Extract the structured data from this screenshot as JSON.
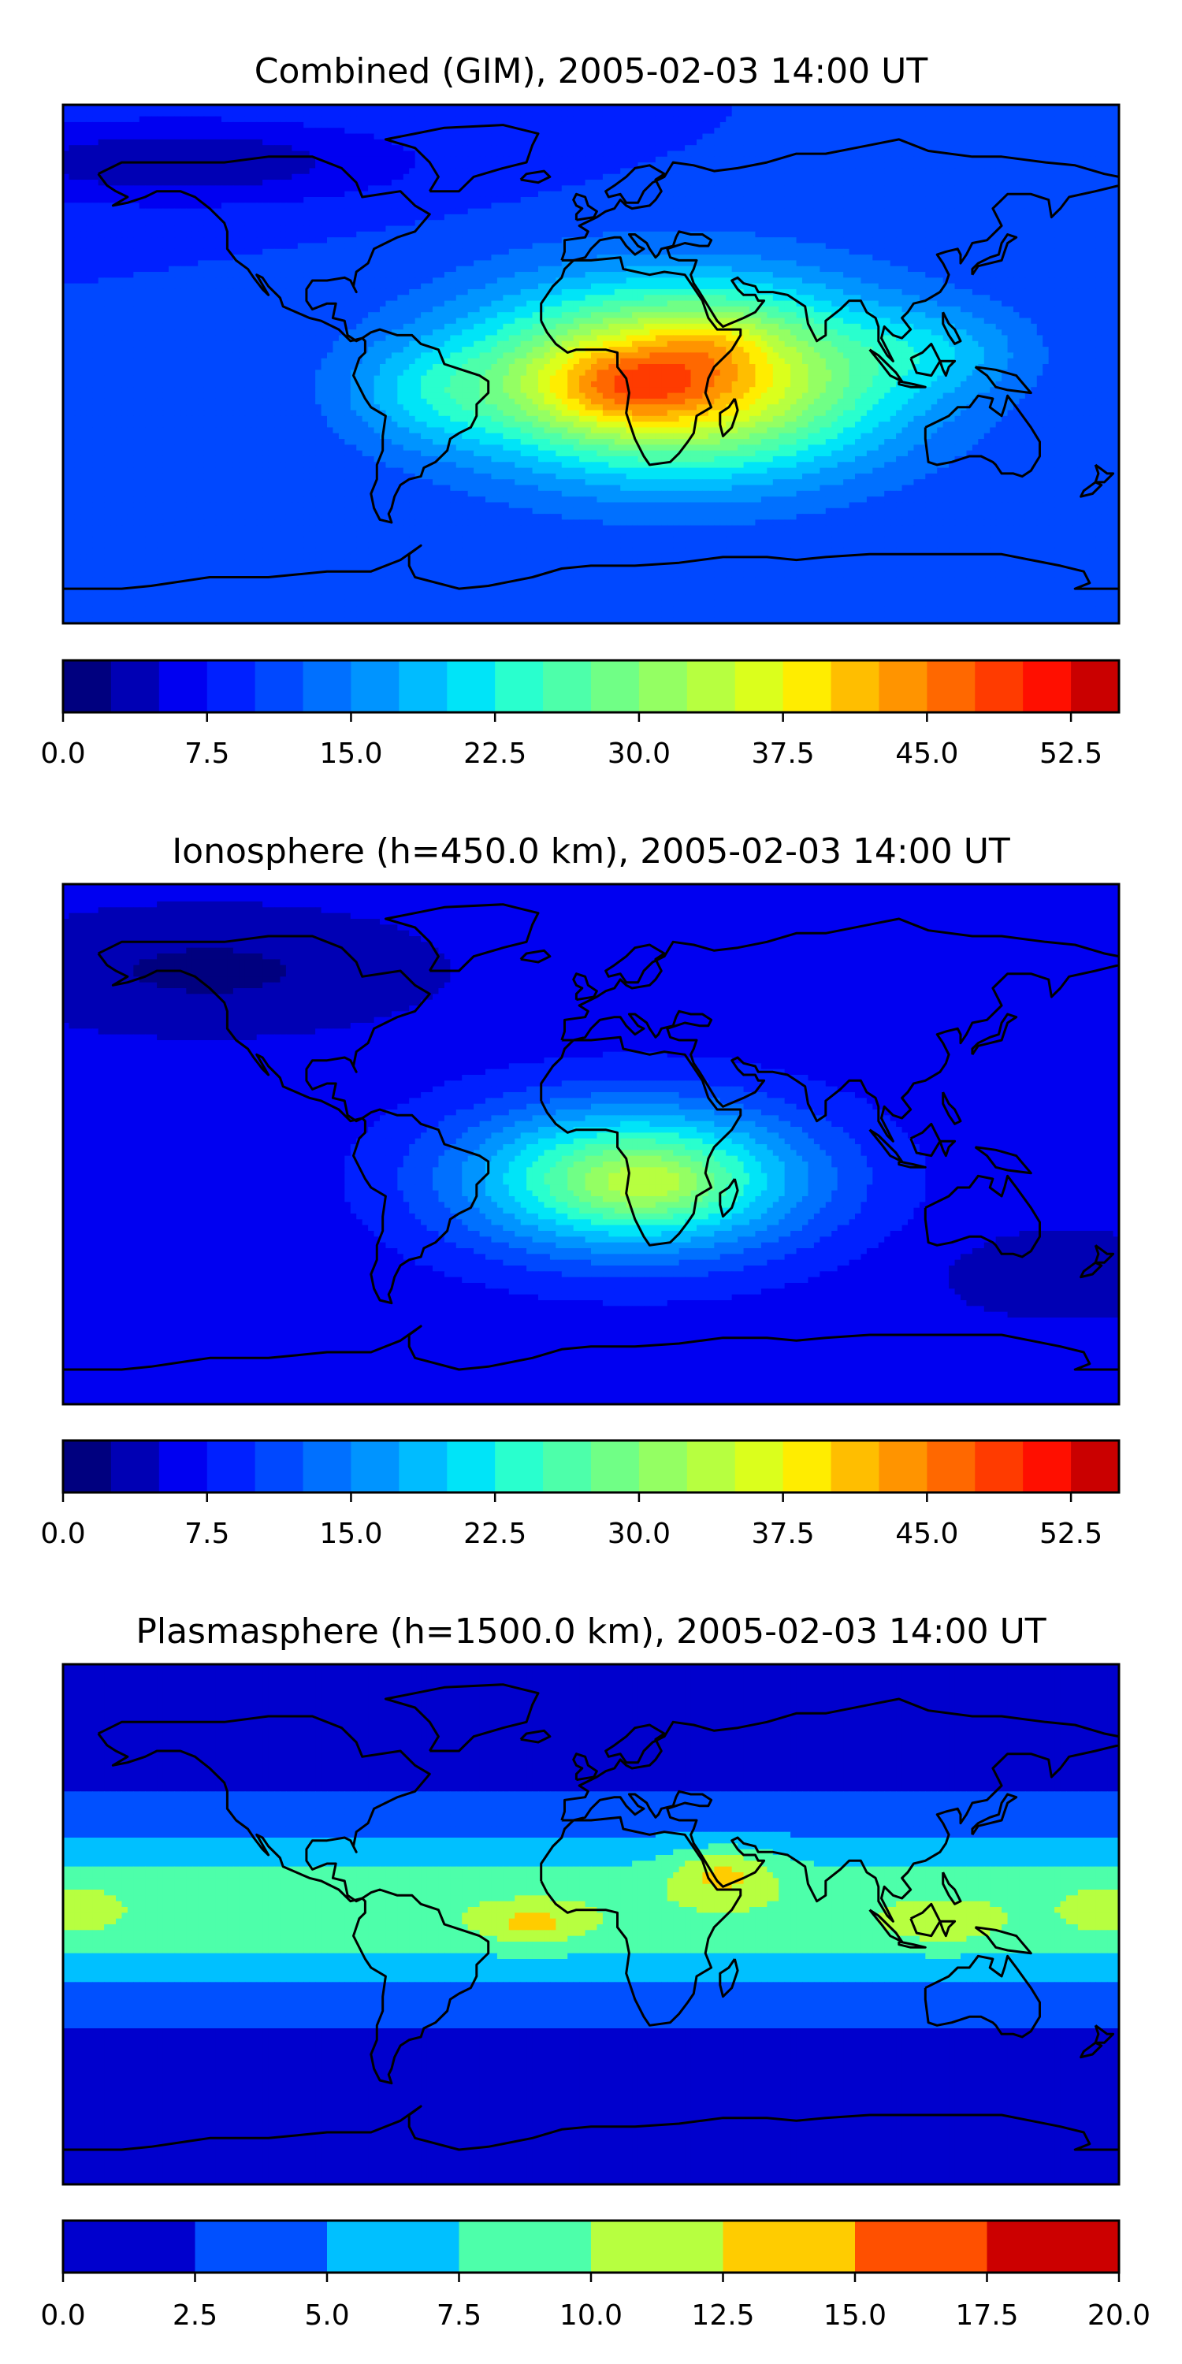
{
  "panels": [
    {
      "title": "Combined (GIM), 2005-02-03 14:00 UT",
      "field": {
        "background": 10,
        "blobs": [
          {
            "lon": 30,
            "lat": -5,
            "slon": 70,
            "slat": 32,
            "amp": 33
          },
          {
            "lon": 10,
            "lat": -8,
            "slon": 30,
            "slat": 14,
            "amp": 8
          },
          {
            "lon": 40,
            "lat": 8,
            "slon": 18,
            "slat": 10,
            "amp": 4
          },
          {
            "lon": -55,
            "lat": -10,
            "slon": 30,
            "slat": 18,
            "amp": 6
          },
          {
            "lon": 120,
            "lat": 5,
            "slon": 30,
            "slat": 15,
            "amp": 5
          },
          {
            "lon": -140,
            "lat": 70,
            "slon": 80,
            "slat": 15,
            "amp": -7
          }
        ]
      },
      "colorbar": {
        "levels": [
          0,
          2.5,
          5,
          7.5,
          10,
          12.5,
          15,
          17.5,
          20,
          22.5,
          25,
          27.5,
          30,
          32.5,
          35,
          37.5,
          40,
          42.5,
          45,
          47.5,
          50,
          52.5,
          55
        ],
        "ticks": [
          "0.0",
          "7.5",
          "15.0",
          "22.5",
          "30.0",
          "37.5",
          "45.0",
          "52.5"
        ],
        "tick_values": [
          0,
          7.5,
          15,
          22.5,
          30,
          37.5,
          45,
          52.5
        ],
        "colors": [
          "#00007f",
          "#0000b4",
          "#0000f1",
          "#0020ff",
          "#0048ff",
          "#0070ff",
          "#0094ff",
          "#00bcff",
          "#00e4f8",
          "#29ffce",
          "#4dffaa",
          "#70ff86",
          "#94ff63",
          "#b7ff40",
          "#dbff1c",
          "#ffed00",
          "#ffbe00",
          "#ff9400",
          "#ff6800",
          "#ff3b00",
          "#ff0f00",
          "#ca0000",
          "#8b0000"
        ]
      }
    },
    {
      "title": "Ionosphere  (h=450.0 km), 2005-02-03 14:00 UT",
      "field": {
        "background": 6,
        "blobs": [
          {
            "lon": 15,
            "lat": -12,
            "slon": 60,
            "slat": 26,
            "amp": 24
          },
          {
            "lon": 20,
            "lat": -14,
            "slon": 22,
            "slat": 10,
            "amp": 5
          },
          {
            "lon": -130,
            "lat": 60,
            "slon": 70,
            "slat": 20,
            "amp": -4
          },
          {
            "lon": 160,
            "lat": -45,
            "slon": 40,
            "slat": 15,
            "amp": -3
          }
        ]
      },
      "colorbar": {
        "levels": [
          0,
          2.5,
          5,
          7.5,
          10,
          12.5,
          15,
          17.5,
          20,
          22.5,
          25,
          27.5,
          30,
          32.5,
          35,
          37.5,
          40,
          42.5,
          45,
          47.5,
          50,
          52.5,
          55
        ],
        "ticks": [
          "0.0",
          "7.5",
          "15.0",
          "22.5",
          "30.0",
          "37.5",
          "45.0",
          "52.5"
        ],
        "tick_values": [
          0,
          7.5,
          15,
          22.5,
          30,
          37.5,
          45,
          52.5
        ],
        "colors": [
          "#00007f",
          "#0000b4",
          "#0000f1",
          "#0020ff",
          "#0048ff",
          "#0070ff",
          "#0094ff",
          "#00bcff",
          "#00e4f8",
          "#29ffce",
          "#4dffaa",
          "#70ff86",
          "#94ff63",
          "#b7ff40",
          "#dbff1c",
          "#ffed00",
          "#ffbe00",
          "#ff9400",
          "#ff6800",
          "#ff3b00",
          "#ff0f00",
          "#ca0000",
          "#8b0000"
        ]
      }
    },
    {
      "title": "Plasmasphere (h=1500.0 km), 2005-02-03 14:00 UT",
      "field": {
        "background": 1.5,
        "band": {
          "lat": 5,
          "slat": 28,
          "amp": 8
        },
        "blobs": [
          {
            "lon": 45,
            "lat": 18,
            "slon": 18,
            "slat": 9,
            "amp": 5
          },
          {
            "lon": -20,
            "lat": 0,
            "slon": 18,
            "slat": 7,
            "amp": 4
          },
          {
            "lon": 120,
            "lat": 0,
            "slon": 18,
            "slat": 7,
            "amp": 3
          },
          {
            "lon": 180,
            "lat": 5,
            "slon": 16,
            "slat": 8,
            "amp": 3
          },
          {
            "lon": -180,
            "lat": 5,
            "slon": 16,
            "slat": 8,
            "amp": 3
          }
        ]
      },
      "colorbar": {
        "levels": [
          0,
          2.5,
          5,
          7.5,
          10,
          12.5,
          15,
          17.5,
          20
        ],
        "ticks": [
          "0.0",
          "2.5",
          "5.0",
          "7.5",
          "10.0",
          "12.5",
          "15.0",
          "17.5",
          "20.0"
        ],
        "tick_values": [
          0,
          2.5,
          5,
          7.5,
          10,
          12.5,
          15,
          17.5,
          20
        ],
        "colors": [
          "#0000cd",
          "#0050ff",
          "#00c0ff",
          "#4dffaa",
          "#b7ff40",
          "#ffcc00",
          "#ff5000",
          "#cc0000"
        ]
      }
    }
  ],
  "map_colors": {
    "coastline": "#000000",
    "frame": "#000000"
  }
}
